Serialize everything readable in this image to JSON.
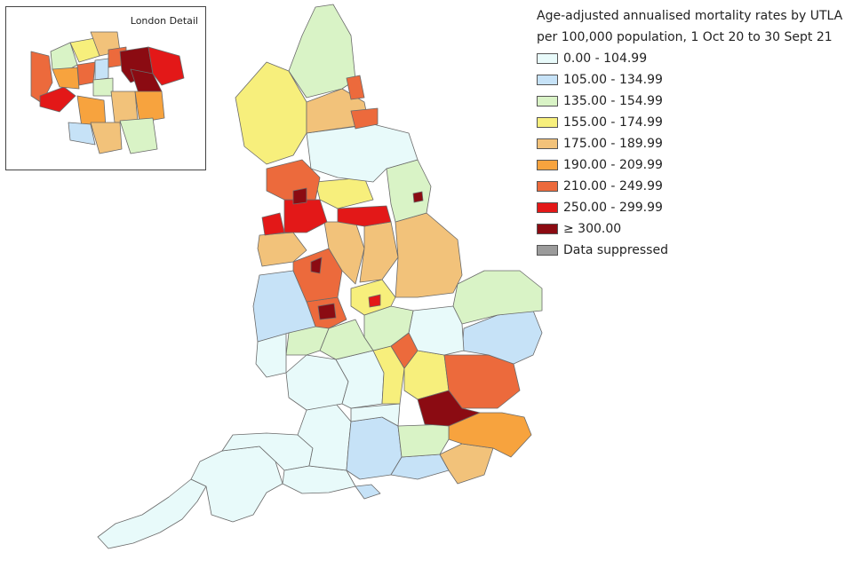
{
  "legend": {
    "title_line1": "Age-adjusted annualised mortality rates by UTLA",
    "title_line2": "per 100,000 population, 1 Oct 20 to 30 Sept 21",
    "items": [
      {
        "label": "0.00 - 104.99",
        "color": "#e8fafa"
      },
      {
        "label": "105.00 - 134.99",
        "color": "#c6e2f7"
      },
      {
        "label": "135.00 - 154.99",
        "color": "#d9f3c6"
      },
      {
        "label": "155.00 - 174.99",
        "color": "#f7ef7c"
      },
      {
        "label": "175.00 - 189.99",
        "color": "#f2c27a"
      },
      {
        "label": "190.00 - 209.99",
        "color": "#f7a33e"
      },
      {
        "label": "210.00 - 249.99",
        "color": "#ec6a3c"
      },
      {
        "label": "250.00 - 299.99",
        "color": "#e31818"
      },
      {
        "label": "≥ 300.00",
        "color": "#8b0b12"
      },
      {
        "label": "Data suppressed",
        "color": "#9b9b9b"
      }
    ]
  },
  "inset": {
    "title": "London Detail"
  }
}
